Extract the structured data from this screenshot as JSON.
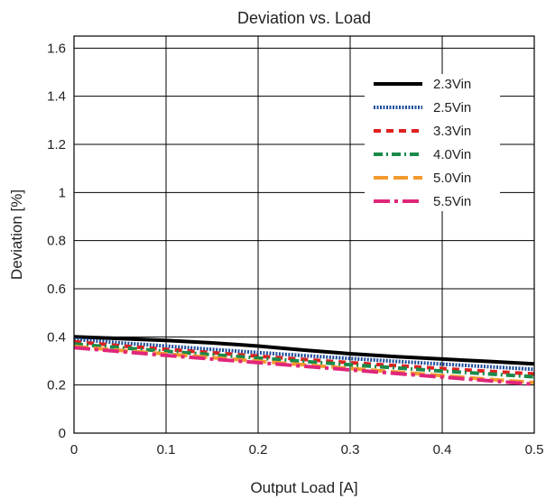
{
  "chart_data": {
    "type": "line",
    "title": "Deviation vs. Load",
    "xlabel": "Output Load [A]",
    "ylabel": "Deviation [%]",
    "xlim": [
      0,
      0.5
    ],
    "ylim": [
      0,
      1.65
    ],
    "x_ticks": [
      "0",
      "0.1",
      "0.2",
      "0.3",
      "0.4",
      "0.5"
    ],
    "y_ticks": [
      "0",
      "0.2",
      "0.4",
      "0.6",
      "0.8",
      "1",
      "1.2",
      "1.4",
      "1.6"
    ],
    "grid": true,
    "legend_position": "top-right",
    "series": [
      {
        "name": "2.3Vin",
        "color": "#000000",
        "style": "solid",
        "x": [
          0,
          0.05,
          0.1,
          0.15,
          0.2,
          0.25,
          0.3,
          0.35,
          0.4,
          0.45,
          0.5
        ],
        "y": [
          0.4,
          0.393,
          0.385,
          0.375,
          0.362,
          0.345,
          0.33,
          0.318,
          0.308,
          0.298,
          0.288
        ]
      },
      {
        "name": "2.5Vin",
        "color": "#1f4e9c",
        "style": "dotted",
        "x": [
          0,
          0.05,
          0.1,
          0.15,
          0.2,
          0.25,
          0.3,
          0.35,
          0.4,
          0.45,
          0.5
        ],
        "y": [
          0.39,
          0.375,
          0.362,
          0.348,
          0.335,
          0.322,
          0.31,
          0.298,
          0.287,
          0.276,
          0.265
        ]
      },
      {
        "name": "3.3Vin",
        "color": "#e02020",
        "style": "dashed",
        "x": [
          0,
          0.05,
          0.1,
          0.15,
          0.2,
          0.25,
          0.3,
          0.35,
          0.4,
          0.45,
          0.5
        ],
        "y": [
          0.38,
          0.363,
          0.348,
          0.334,
          0.32,
          0.306,
          0.293,
          0.28,
          0.268,
          0.257,
          0.246
        ]
      },
      {
        "name": "4.0Vin",
        "color": "#1a8a4a",
        "style": "dashdot",
        "x": [
          0,
          0.05,
          0.1,
          0.15,
          0.2,
          0.25,
          0.3,
          0.35,
          0.4,
          0.45,
          0.5
        ],
        "y": [
          0.37,
          0.355,
          0.34,
          0.326,
          0.312,
          0.298,
          0.284,
          0.271,
          0.258,
          0.246,
          0.234
        ]
      },
      {
        "name": "5.0Vin",
        "color": "#f39a2e",
        "style": "longdash",
        "x": [
          0,
          0.05,
          0.1,
          0.15,
          0.2,
          0.25,
          0.3,
          0.35,
          0.4,
          0.45,
          0.5
        ],
        "y": [
          0.36,
          0.344,
          0.329,
          0.314,
          0.299,
          0.284,
          0.269,
          0.254,
          0.239,
          0.224,
          0.21
        ]
      },
      {
        "name": "5.5Vin",
        "color": "#e0267a",
        "style": "longdashdot",
        "x": [
          0,
          0.05,
          0.1,
          0.15,
          0.2,
          0.25,
          0.3,
          0.35,
          0.4,
          0.45,
          0.5
        ],
        "y": [
          0.355,
          0.339,
          0.323,
          0.308,
          0.293,
          0.278,
          0.263,
          0.248,
          0.233,
          0.218,
          0.203
        ]
      }
    ]
  }
}
